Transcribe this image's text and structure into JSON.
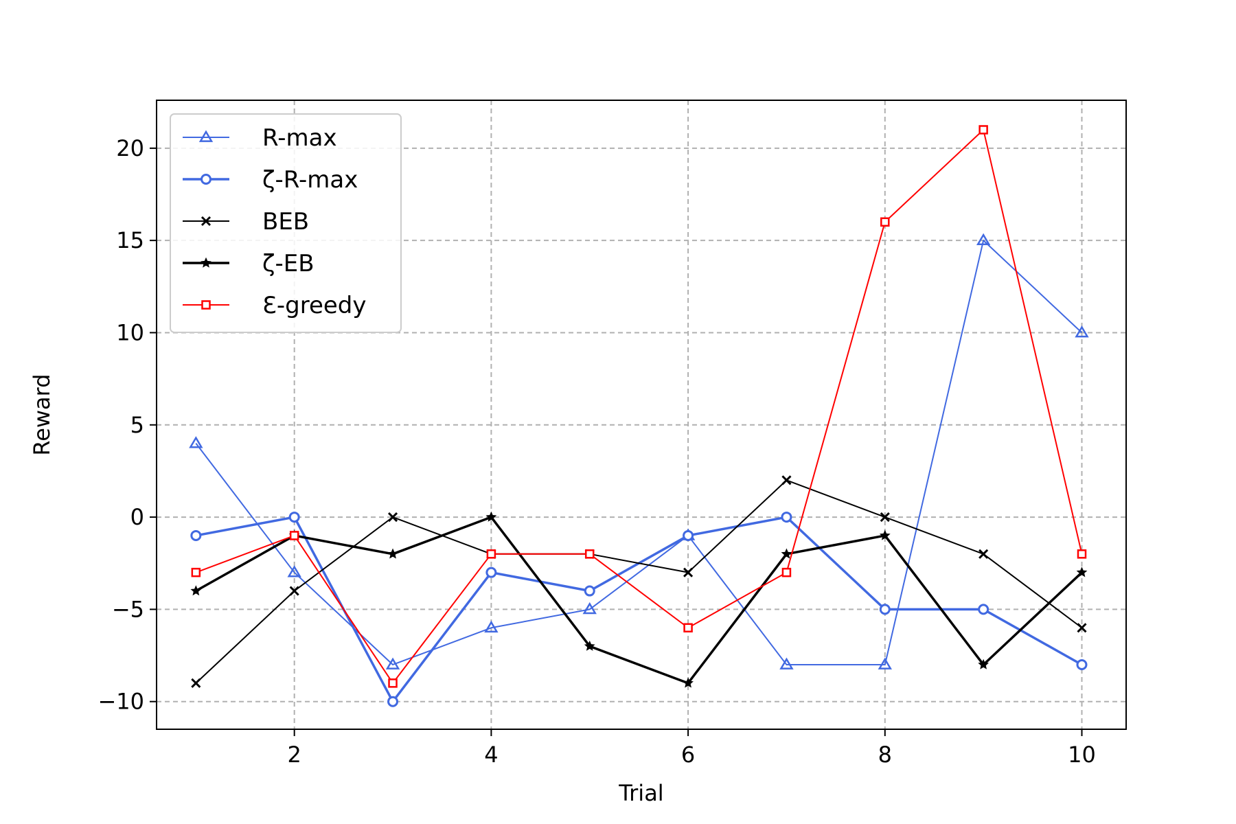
{
  "chart_data": {
    "type": "line",
    "title": "",
    "xlabel": "Trial",
    "ylabel": "Reward",
    "x": [
      1,
      2,
      3,
      4,
      5,
      6,
      7,
      8,
      9,
      10
    ],
    "xlim": [
      0.6,
      10.45
    ],
    "ylim": [
      -11.5,
      22.6
    ],
    "xticks": [
      2,
      4,
      6,
      8,
      10
    ],
    "yticks": [
      -10,
      -5,
      0,
      5,
      10,
      15,
      20
    ],
    "ytick_labels": [
      "−10",
      "−5",
      "0",
      "5",
      "10",
      "15",
      "20"
    ],
    "grid": true,
    "legend_position": "top-left",
    "series": [
      {
        "name": "R-max",
        "color": "#4169e1",
        "marker": "triangle-open",
        "width": "thin",
        "values": [
          4,
          -3,
          -8,
          -6,
          -5,
          -1,
          -8,
          -8,
          15,
          10
        ]
      },
      {
        "name": "ζ-R-max",
        "color": "#4169e1",
        "marker": "circle-open",
        "width": "thick",
        "values": [
          -1,
          0,
          -10,
          -3,
          -4,
          -1,
          0,
          -5,
          -5,
          -8
        ]
      },
      {
        "name": "BEB",
        "color": "#000000",
        "marker": "x",
        "width": "thin",
        "values": [
          -9,
          -4,
          0,
          -2,
          -2,
          -3,
          2,
          0,
          -2,
          -6
        ]
      },
      {
        "name": "ζ-EB",
        "color": "#000000",
        "marker": "star",
        "width": "thick",
        "values": [
          -4,
          -1,
          -2,
          0,
          -7,
          -9,
          -2,
          -1,
          -8,
          -3
        ]
      },
      {
        "name": "Ɛ-greedy",
        "color": "#ff0000",
        "marker": "square-open",
        "width": "thin",
        "values": [
          -3,
          -1,
          -9,
          -2,
          -2,
          -6,
          -3,
          16,
          21,
          -2
        ]
      }
    ]
  }
}
